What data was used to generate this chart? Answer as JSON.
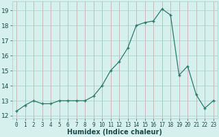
{
  "x": [
    0,
    1,
    2,
    3,
    4,
    5,
    6,
    7,
    8,
    9,
    10,
    11,
    12,
    13,
    14,
    15,
    16,
    17,
    18,
    19,
    20,
    21,
    22,
    23
  ],
  "y": [
    12.3,
    12.7,
    13.0,
    12.8,
    12.8,
    13.0,
    13.0,
    13.0,
    13.0,
    13.3,
    14.0,
    15.0,
    15.6,
    16.5,
    18.0,
    18.2,
    18.3,
    19.1,
    18.7,
    14.7,
    15.3,
    13.4,
    12.5,
    13.0
  ],
  "xlabel": "Humidex (Indice chaleur)",
  "ylim": [
    11.8,
    19.6
  ],
  "xlim": [
    -0.5,
    23.5
  ],
  "yticks": [
    12,
    13,
    14,
    15,
    16,
    17,
    18,
    19
  ],
  "xtick_labels": [
    "0",
    "1",
    "2",
    "3",
    "4",
    "5",
    "6",
    "7",
    "8",
    "9",
    "10",
    "11",
    "12",
    "13",
    "14",
    "15",
    "16",
    "17",
    "18",
    "19",
    "20",
    "21",
    "22",
    "23"
  ],
  "line_color": "#2a7a6a",
  "marker": "+",
  "bg_color": "#d6f0ee",
  "grid_color_v": "#c8a0a0",
  "grid_color_h": "#a8cece",
  "font_color": "#1a4a4a",
  "label_fontsize": 6.5,
  "tick_fontsize": 5.5,
  "xlabel_fontsize": 7.0
}
